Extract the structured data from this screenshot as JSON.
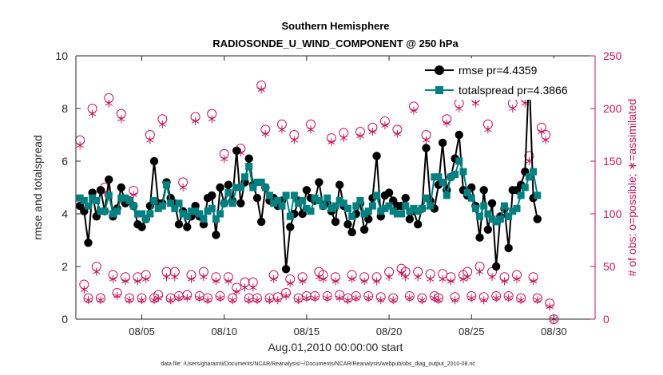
{
  "chart_data": {
    "type": "line",
    "title": "Southern Hemisphere",
    "subtitle": "RADIOSONDE_U_WIND_COMPONENT @ 250 hPa",
    "xlabel": "Aug.01,2010 00:00:00 start",
    "ylabel": "rmse and totalspread",
    "y2label": "# of obs: o=possible; ∗=assimilated",
    "footnote": "data file: /Users/gharamti/Documents/NCAR/Reanalysis/~/Documents/NCAR/Reanalysis/webpub/obs_diag_output_2010-08.nc",
    "xlim": [
      1.0,
      32.5
    ],
    "ylim": [
      0,
      10
    ],
    "y2lim": [
      0,
      250
    ],
    "x_ticks": [
      {
        "value": 5,
        "label": "08/05"
      },
      {
        "value": 10,
        "label": "08/10"
      },
      {
        "value": 15,
        "label": "08/15"
      },
      {
        "value": 20,
        "label": "08/20"
      },
      {
        "value": 25,
        "label": "08/25"
      },
      {
        "value": 30,
        "label": "08/30"
      }
    ],
    "y_ticks": [
      {
        "value": 0,
        "label": "0"
      },
      {
        "value": 2,
        "label": "2"
      },
      {
        "value": 4,
        "label": "4"
      },
      {
        "value": 6,
        "label": "6"
      },
      {
        "value": 8,
        "label": "8"
      },
      {
        "value": 10,
        "label": "10"
      }
    ],
    "y2_ticks": [
      {
        "value": 0,
        "label": "0"
      },
      {
        "value": 50,
        "label": "50"
      },
      {
        "value": 100,
        "label": "100"
      },
      {
        "value": 150,
        "label": "150"
      },
      {
        "value": 200,
        "label": "200"
      },
      {
        "value": 250,
        "label": "250"
      }
    ],
    "x_start": 1.25,
    "x_step": 0.25,
    "series": [
      {
        "name": "rmse",
        "legend": "rmse pr=4.4359",
        "color": "#000000",
        "marker": "circle",
        "axis": "left",
        "values": [
          4.3,
          4.1,
          2.9,
          4.8,
          3.9,
          4.9,
          4.1,
          5.3,
          3.9,
          4.2,
          5.0,
          4.4,
          4.5,
          4.3,
          3.6,
          3.5,
          3.8,
          4.3,
          6.0,
          4.4,
          4.4,
          5.2,
          4.6,
          4.4,
          3.6,
          4.1,
          3.5,
          3.9,
          4.3,
          3.9,
          3.6,
          4.6,
          4.7,
          3.2,
          5.0,
          4.4,
          5.1,
          4.5,
          6.4,
          4.4,
          5.2,
          6.1,
          5.1,
          4.6,
          3.7,
          5.0,
          4.5,
          4.6,
          4.3,
          4.5,
          1.9,
          3.5,
          4.0,
          4.5,
          4.0,
          4.9,
          4.6,
          4.5,
          5.2,
          4.3,
          4.4,
          4.1,
          3.7,
          5.1,
          4.3,
          3.6,
          3.3,
          4.0,
          4.4,
          3.4,
          3.8,
          4.6,
          6.2,
          3.9,
          4.7,
          4.8,
          4.5,
          4.3,
          4.3,
          4.6,
          3.8,
          4.1,
          3.6,
          4.2,
          6.5,
          4.5,
          4.2,
          5.1,
          6.7,
          4.9,
          5.4,
          6.1,
          7.0,
          4.9,
          4.7,
          5.0,
          4.3,
          3.1,
          4.9,
          3.4,
          4.4,
          2.0,
          3.9,
          4.2,
          2.7,
          4.9,
          4.9,
          5.1,
          5.6,
          9.4,
          4.6,
          3.8
        ]
      },
      {
        "name": "totalspread",
        "legend": "totalspread pr=4.3866",
        "color": "#008080",
        "marker": "square",
        "axis": "left",
        "values": [
          4.6,
          4.5,
          4.3,
          4.6,
          4.5,
          4.1,
          4.1,
          4.7,
          4.0,
          4.1,
          4.6,
          4.6,
          4.5,
          4.3,
          4.0,
          4.0,
          3.8,
          4.0,
          4.5,
          4.2,
          4.3,
          5.1,
          4.4,
          4.2,
          4.4,
          4.0,
          3.9,
          4.1,
          4.1,
          4.0,
          3.8,
          4.1,
          4.2,
          3.8,
          4.0,
          4.4,
          4.8,
          4.4,
          5.0,
          5.0,
          5.4,
          5.8,
          5.0,
          5.2,
          5.2,
          5.0,
          4.7,
          4.4,
          4.5,
          4.3,
          4.7,
          3.9,
          4.7,
          4.4,
          4.5,
          4.2,
          4.1,
          4.6,
          4.5,
          4.3,
          4.6,
          4.2,
          4.3,
          4.5,
          4.4,
          4.2,
          3.9,
          4.3,
          4.5,
          4.0,
          4.1,
          4.3,
          4.7,
          4.1,
          4.2,
          4.3,
          4.1,
          4.0,
          4.0,
          4.3,
          4.1,
          4.2,
          4.1,
          4.2,
          4.6,
          4.3,
          5.4,
          5.4,
          5.2,
          4.7,
          5.4,
          5.5,
          6.0,
          5.6,
          4.8,
          4.6,
          4.2,
          3.9,
          4.3,
          4.0,
          3.8,
          3.7,
          3.8,
          4.3,
          3.9,
          4.1,
          4.2,
          4.7,
          5.0,
          5.4,
          5.6,
          4.7
        ]
      },
      {
        "name": "possible",
        "legend": "",
        "color": "#c2185b",
        "marker": "open-circle",
        "axis": "right",
        "values": [
          170,
          33,
          20,
          200,
          50,
          20,
          125,
          210,
          42,
          25,
          195,
          40,
          20,
          122,
          40,
          20,
          42,
          175,
          20,
          23,
          190,
          45,
          20,
          45,
          22,
          130,
          23,
          42,
          192,
          22,
          45,
          20,
          195,
          40,
          22,
          157,
          40,
          20,
          30,
          162,
          35,
          20,
          35,
          20,
          222,
          180,
          20,
          42,
          21,
          185,
          25,
          38,
          175,
          20,
          40,
          22,
          185,
          22,
          45,
          42,
          22,
          172,
          40,
          23,
          177,
          20,
          42,
          22,
          178,
          40,
          22,
          182,
          40,
          21,
          188,
          45,
          20,
          180,
          48,
          45,
          22,
          202,
          45,
          20,
          175,
          43,
          22,
          20,
          43,
          190,
          40,
          21,
          205,
          42,
          45,
          22,
          210,
          50,
          21,
          185,
          45,
          22,
          235,
          40,
          22,
          205,
          42,
          20,
          210,
          155,
          40,
          20,
          182,
          175,
          15,
          0
        ]
      },
      {
        "name": "assimilated",
        "legend": "",
        "color": "#c2185b",
        "marker": "asterisk",
        "axis": "right",
        "values": [
          165,
          28,
          18,
          195,
          45,
          18,
          120,
          205,
          38,
          22,
          190,
          36,
          18,
          118,
          36,
          18,
          38,
          170,
          18,
          20,
          185,
          40,
          18,
          40,
          20,
          125,
          20,
          38,
          188,
          20,
          40,
          18,
          190,
          36,
          20,
          152,
          36,
          18,
          26,
          158,
          30,
          18,
          30,
          18,
          218,
          176,
          18,
          38,
          18,
          180,
          22,
          34,
          170,
          18,
          36,
          20,
          180,
          20,
          40,
          38,
          20,
          168,
          36,
          20,
          172,
          18,
          38,
          20,
          174,
          36,
          20,
          178,
          36,
          18,
          184,
          40,
          18,
          176,
          44,
          40,
          20,
          198,
          40,
          18,
          170,
          38,
          20,
          18,
          38,
          186,
          36,
          18,
          200,
          38,
          40,
          20,
          205,
          45,
          18,
          180,
          40,
          20,
          230,
          36,
          20,
          200,
          38,
          18,
          205,
          150,
          36,
          18,
          178,
          170,
          12,
          0
        ]
      }
    ]
  }
}
